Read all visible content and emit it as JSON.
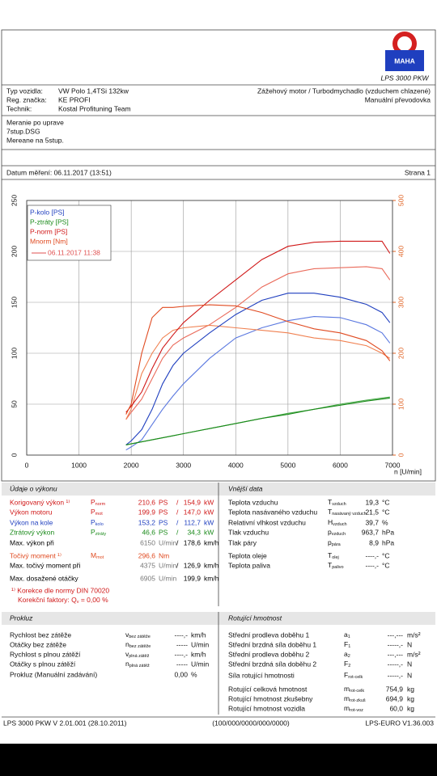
{
  "header": {
    "logo": "MAHA",
    "model": "LPS 3000 PKW"
  },
  "vehicle": {
    "rows": [
      {
        "label": "Typ vozidla:",
        "value": "VW Polo 1,4TSi 132kw"
      },
      {
        "label": "Reg. značka:",
        "value": "KE PROFI"
      },
      {
        "label": "Technik:",
        "value": "Kostal Profituning Team"
      }
    ],
    "engine": "Zážehový motor / Turbodmychadlo (vzduchem chlazené)",
    "gearbox": "Manuální převodovka"
  },
  "notes": [
    "Meranie po uprave",
    "7stup.DSG",
    "Mereane na 5stup."
  ],
  "measurement": {
    "date": "Datum měření: 06.11.2017 (13:51)",
    "page": "Strana 1"
  },
  "chart_data": {
    "type": "line",
    "x_label": "n [U/min]",
    "x": [
      1900,
      2000,
      2200,
      2400,
      2600,
      2800,
      3000,
      3500,
      4000,
      4500,
      5000,
      5500,
      6000,
      6500,
      6800,
      6950
    ],
    "xlim": [
      0,
      7000
    ],
    "xticks": [
      0,
      1000,
      2000,
      3000,
      4000,
      5000,
      6000,
      7000
    ],
    "ylim": [
      0,
      250
    ],
    "yticks": [
      0,
      50,
      100,
      150,
      200,
      250
    ],
    "y2lim": [
      0,
      500
    ],
    "y2ticks": [
      0,
      100,
      200,
      300,
      400,
      500
    ],
    "y2color": "#e06020",
    "grid": true,
    "series": [
      {
        "name": "P-kolo [PS]",
        "color": "#1f3fbf",
        "values": [
          10,
          14,
          25,
          45,
          70,
          88,
          100,
          120,
          138,
          152,
          159,
          159,
          155,
          148,
          140,
          130
        ]
      },
      {
        "name": "P-ztráty [PS]",
        "color": "#1a8a1a",
        "values": [
          10,
          11,
          13,
          15,
          17,
          19,
          21,
          26,
          31,
          36,
          40,
          45,
          49,
          53,
          55,
          56
        ]
      },
      {
        "name": "P-norm [PS]",
        "color": "#d01818",
        "values": [
          42,
          48,
          62,
          85,
          105,
          118,
          130,
          152,
          172,
          192,
          205,
          209,
          210,
          210,
          210,
          198
        ]
      },
      {
        "name": "Mnorm [Nm]",
        "color": "#e04a20",
        "axis": "y2",
        "values": [
          80,
          100,
          200,
          270,
          290,
          290,
          292,
          295,
          293,
          280,
          262,
          248,
          240,
          225,
          205,
          185
        ]
      }
    ],
    "comparison": {
      "name": "06.11.2017 11:38",
      "color": "#e05050",
      "series": [
        {
          "color": "#5a78e0",
          "values": [
            5,
            8,
            15,
            30,
            45,
            58,
            70,
            95,
            115,
            125,
            132,
            136,
            135,
            128,
            120,
            110
          ]
        },
        {
          "color": "#4aaa4a",
          "values": [
            10,
            11,
            13,
            15,
            17,
            19,
            21,
            26,
            31,
            36,
            41,
            45,
            50,
            54,
            56,
            57
          ]
        },
        {
          "color": "#ea6a5a",
          "values": [
            35,
            42,
            55,
            75,
            95,
            108,
            115,
            128,
            145,
            165,
            178,
            183,
            184,
            185,
            183,
            172
          ]
        },
        {
          "color": "#f08050",
          "axis": "y2",
          "values": [
            70,
            90,
            160,
            200,
            230,
            245,
            250,
            255,
            250,
            245,
            240,
            230,
            225,
            215,
            200,
            190
          ]
        }
      ]
    }
  },
  "performance": {
    "title": "Údaje o výkonu",
    "rows": [
      {
        "label": "Korigovaný výkon ¹⁾",
        "symbol": {
          "base": "P",
          "sub": "norm"
        },
        "value1": "210,6",
        "unit1": "PS",
        "sep": "/",
        "value2": "154,9",
        "unit2": "kW",
        "color": "#d01818"
      },
      {
        "label": "Výkon motoru",
        "symbol": {
          "base": "P",
          "sub": "mot"
        },
        "value1": "199,9",
        "unit1": "PS",
        "sep": "/",
        "value2": "147,0",
        "unit2": "kW",
        "color": "#d01818"
      },
      {
        "label": "Výkon na kole",
        "symbol": {
          "base": "P",
          "sub": "kolo"
        },
        "value1": "153,2",
        "unit1": "PS",
        "sep": "/",
        "value2": "112,7",
        "unit2": "kW",
        "color": "#1f3fbf"
      },
      {
        "label": "Ztrátový výkon",
        "symbol": {
          "base": "P",
          "sub": "ztráty"
        },
        "value1": "46,6",
        "unit1": "PS",
        "sep": "/",
        "value2": "34,3",
        "unit2": "kW",
        "color": "#1a8a1a"
      },
      {
        "label": "Max. výkon při",
        "value1": "6150",
        "unit1": "U/min",
        "sep": "/",
        "value2": "178,6",
        "unit2": "km/h",
        "color": "#000000"
      },
      {
        "label": "Točivý moment ¹⁾",
        "symbol": {
          "base": "M",
          "sub": "mot"
        },
        "value1": "296,6",
        "unit1": "Nm",
        "color": "#e04a20"
      },
      {
        "label": "Max. točivý moment při",
        "value1": "4375",
        "unit1": "U/min",
        "sep": "/",
        "value2": "126,9",
        "unit2": "km/h",
        "color": "#000000"
      },
      {
        "label": "Max. dosažené otáčky",
        "value1": "6905",
        "unit1": "U/min",
        "value2": "199,9",
        "unit2": "km/h",
        "color": "#000000"
      }
    ],
    "footnote": "¹⁾ Korekce dle normy DIN 70020",
    "factor": {
      "prefix": "Korekční faktory: Q",
      "sub": "v",
      "suffix": " =  0,00 %"
    }
  },
  "environment": {
    "title": "Vnější data",
    "rows": [
      {
        "label": "Teplota vzduchu",
        "symbol": {
          "base": "T",
          "sub": "vzduch"
        },
        "value": "19,3",
        "unit": "°C"
      },
      {
        "label": "Teplota nasávaného vzduchu",
        "symbol": {
          "base": "T",
          "sub": "nasávaný vzduch"
        },
        "value": "21,5",
        "unit": "°C"
      },
      {
        "label": "Relativní vlhkost vzduchu",
        "symbol": {
          "base": "H",
          "sub": "vzduch"
        },
        "value": "39,7",
        "unit": "%"
      },
      {
        "label": "Tlak vzduchu",
        "symbol": {
          "base": "p",
          "sub": "vzduch"
        },
        "value": "963,7",
        "unit": "hPa"
      },
      {
        "label": "Tlak páry",
        "symbol": {
          "base": "p",
          "sub": "pára"
        },
        "value": "8,9",
        "unit": "hPa"
      },
      {
        "label": "Teplota oleje",
        "symbol": {
          "base": "T",
          "sub": "olej"
        },
        "value": "----,-",
        "unit": "°C"
      },
      {
        "label": "Teplota paliva",
        "symbol": {
          "base": "T",
          "sub": "palivo"
        },
        "value": "----,-",
        "unit": "°C"
      }
    ]
  },
  "slip": {
    "title": "Prokluz",
    "rows": [
      {
        "label": "Rychlost bez zátěže",
        "symbol": {
          "base": "v",
          "sub": "bez zátěže"
        },
        "value": "----,-",
        "unit": "km/h"
      },
      {
        "label": "Otáčky bez zátěže",
        "symbol": {
          "base": "n",
          "sub": "bez zátěže"
        },
        "value": "-----",
        "unit": "U/min"
      },
      {
        "label": "Rychlost s plnou zátěží",
        "symbol": {
          "base": "v",
          "sub": "plná zátěž"
        },
        "value": "----,-",
        "unit": "km/h"
      },
      {
        "label": "Otáčky s plnou zátěží",
        "symbol": {
          "base": "n",
          "sub": "plná zátěž"
        },
        "value": "-----",
        "unit": "U/min"
      },
      {
        "label": "Prokluz (Manuální zadávání)",
        "value": "0,00",
        "unit": "%"
      }
    ]
  },
  "rotating": {
    "title": "Rotující hmotnost",
    "rows": [
      {
        "label": "Střední prodleva doběhu 1",
        "symbol": {
          "base": "a",
          "sub": "1"
        },
        "value": "---,---",
        "unit": "m/s²"
      },
      {
        "label": "Střední brzdná síla doběhu 1",
        "symbol": {
          "base": "F",
          "sub": "1"
        },
        "value": "-----,-",
        "unit": "N"
      },
      {
        "label": "Střední prodleva doběhu 2",
        "symbol": {
          "base": "a",
          "sub": "2"
        },
        "value": "---,---",
        "unit": "m/s²"
      },
      {
        "label": "Střední brzdná síla doběhu 2",
        "symbol": {
          "base": "F",
          "sub": "2"
        },
        "value": "-----,-",
        "unit": "N"
      },
      {
        "label": "Síla rotující hmotnosti",
        "symbol": {
          "base": "F",
          "sub": "rot-celk"
        },
        "value": "-----,-",
        "unit": "N"
      },
      {
        "label": "Rotující celková hmotnost",
        "symbol": {
          "base": "m",
          "sub": "rot-celk"
        },
        "value": "754,9",
        "unit": "kg"
      },
      {
        "label": "Rotující hmotnost zkušebny",
        "symbol": {
          "base": "m",
          "sub": "rot-zkuš"
        },
        "value": "694,9",
        "unit": "kg"
      },
      {
        "label": "Rotující hmotnost vozidla",
        "symbol": {
          "base": "m",
          "sub": "rot-voz"
        },
        "value": "60,0",
        "unit": "kg"
      }
    ]
  },
  "footer": {
    "left": "LPS 3000 PKW V 2.01.001 (28.10.2011)",
    "center": "(100/000/0000/000/0000)",
    "right": "LPS-EURO V1.36.003"
  }
}
